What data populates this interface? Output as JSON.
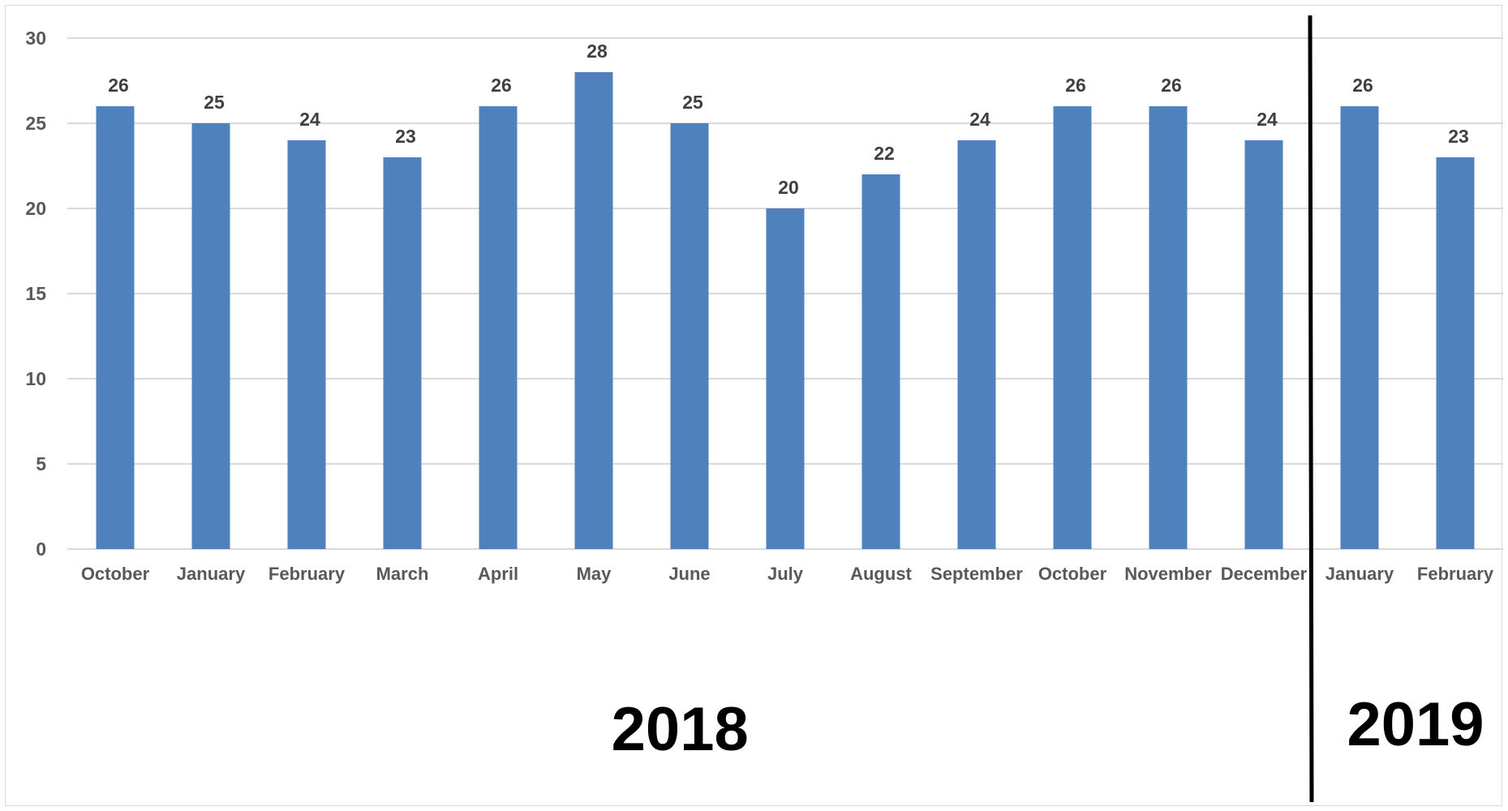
{
  "chart_data": {
    "type": "bar",
    "categories": [
      "October",
      "January",
      "February",
      "March",
      "April",
      "May",
      "June",
      "July",
      "August",
      "September",
      "October",
      "November",
      "December",
      "January",
      "February"
    ],
    "values": [
      26,
      25,
      24,
      23,
      26,
      28,
      25,
      20,
      22,
      24,
      26,
      26,
      24,
      26,
      23
    ],
    "title": "",
    "xlabel": "",
    "ylabel": "",
    "ylim": [
      0,
      30
    ],
    "yticks": [
      0,
      5,
      10,
      15,
      20,
      25,
      30
    ],
    "grid": true,
    "legend": "none",
    "data_labels": true,
    "bar_color": "#4f81bd",
    "year_groups": [
      {
        "label": "2018",
        "start_index": 0,
        "end_index": 12
      },
      {
        "label": "2019",
        "start_index": 13,
        "end_index": 14
      }
    ],
    "divider_after_index": 12
  }
}
